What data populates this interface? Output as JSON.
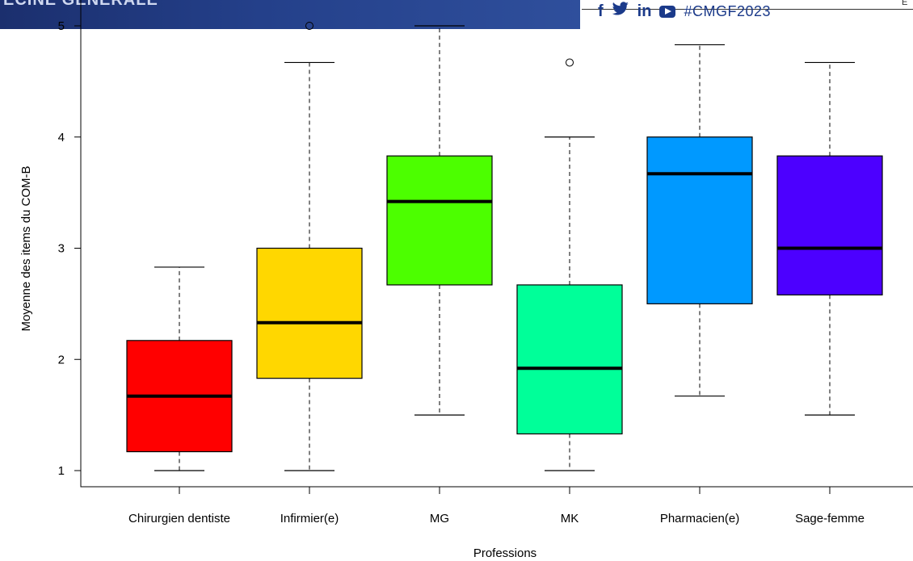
{
  "banner": {
    "title": "ECINE GENERALE"
  },
  "social": {
    "icons": [
      "facebook-icon",
      "twitter-icon",
      "linkedin-icon",
      "youtube-icon"
    ],
    "facebook_glyph": "f",
    "linkedin_glyph": "in",
    "hashtag": "#CMGF2023",
    "corner_mark": "E"
  },
  "chart_data": {
    "type": "boxplot",
    "xlabel": "Professions",
    "ylabel": "Moyenne des items du COM-B",
    "ylim": [
      1,
      5
    ],
    "yticks": [
      1,
      2,
      3,
      4,
      5
    ],
    "grid": false,
    "categories": [
      "Chirurgien dentiste",
      "Infirmier(e)",
      "MG",
      "MK",
      "Pharmacien(e)",
      "Sage-femme"
    ],
    "boxes": [
      {
        "category": "Chirurgien dentiste",
        "color": "#ff0000",
        "whisker_low": 1.0,
        "q1": 1.17,
        "median": 1.67,
        "q3": 2.17,
        "whisker_high": 2.83,
        "outliers": []
      },
      {
        "category": "Infirmier(e)",
        "color": "#ffd700",
        "whisker_low": 1.0,
        "q1": 1.83,
        "median": 2.33,
        "q3": 3.0,
        "whisker_high": 4.67,
        "outliers": [
          5.0
        ]
      },
      {
        "category": "MG",
        "color": "#4cff00",
        "whisker_low": 1.5,
        "q1": 2.67,
        "median": 3.42,
        "q3": 3.83,
        "whisker_high": 5.0,
        "outliers": []
      },
      {
        "category": "MK",
        "color": "#00ff99",
        "whisker_low": 1.0,
        "q1": 1.33,
        "median": 1.92,
        "q3": 2.67,
        "whisker_high": 4.0,
        "outliers": [
          4.67
        ]
      },
      {
        "category": "Pharmacien(e)",
        "color": "#0099ff",
        "whisker_low": 1.67,
        "q1": 2.5,
        "median": 3.67,
        "q3": 4.0,
        "whisker_high": 4.83,
        "outliers": []
      },
      {
        "category": "Sage-femme",
        "color": "#4c00ff",
        "whisker_low": 1.5,
        "q1": 2.58,
        "median": 3.0,
        "q3": 3.83,
        "whisker_high": 4.67,
        "outliers": []
      }
    ]
  }
}
